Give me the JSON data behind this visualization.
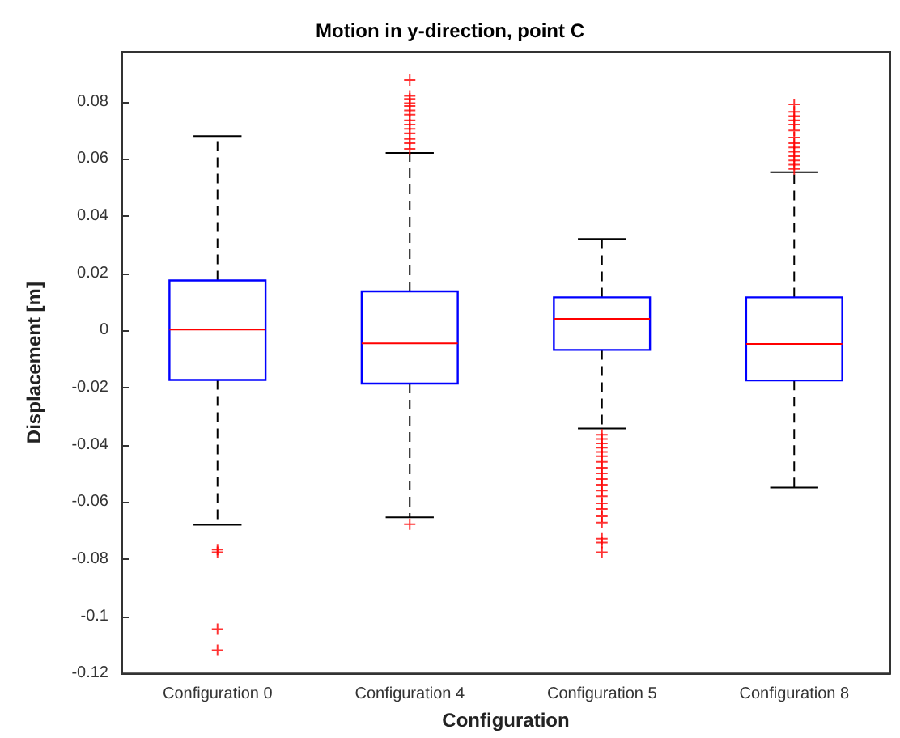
{
  "chart_data": {
    "type": "box",
    "title": "Motion in y-direction, point C",
    "xlabel": "Configuration",
    "ylabel": "Displacement [m]",
    "categories": [
      "Configuration 0",
      "Configuration 4",
      "Configuration 5",
      "Configuration 8"
    ],
    "ylim": [
      -0.12,
      0.0975
    ],
    "yticks": [
      -0.12,
      -0.1,
      -0.08,
      -0.06,
      -0.04,
      -0.02,
      0,
      0.02,
      0.04,
      0.06,
      0.08
    ],
    "grid": false,
    "marker": "cross",
    "line_style": "dashed",
    "series": [
      {
        "color": "#0000ff",
        "boxes": [
          {
            "low": -0.068,
            "q1": -0.0173,
            "median": 0.0003,
            "q3": 0.0175,
            "high": 0.068,
            "outliers": [
              -0.0767,
              -0.0776,
              -0.1045,
              -0.1119
            ]
          },
          {
            "low": -0.0654,
            "q1": -0.0186,
            "median": -0.0045,
            "q3": 0.0137,
            "high": 0.0621,
            "outliers": [
              -0.0678,
              0.0876,
              0.0821,
              0.081,
              0.0795,
              0.0785,
              0.077,
              0.0755,
              0.0735,
              0.072,
              0.0705,
              0.069,
              0.067,
              0.0655,
              0.0635
            ]
          },
          {
            "low": -0.0343,
            "q1": -0.0068,
            "median": 0.0041,
            "q3": 0.0116,
            "high": 0.032,
            "outliers": [
              -0.0365,
              -0.038,
              -0.0395,
              -0.041,
              -0.0425,
              -0.044,
              -0.046,
              -0.048,
              -0.05,
              -0.052,
              -0.054,
              -0.056,
              -0.058,
              -0.0605,
              -0.0625,
              -0.065,
              -0.0672,
              -0.0729,
              -0.0742,
              -0.0776
            ]
          },
          {
            "low": -0.055,
            "q1": -0.0175,
            "median": -0.0047,
            "q3": 0.0116,
            "high": 0.0554,
            "outliers": [
              0.0791,
              0.0765,
              0.075,
              0.0735,
              0.072,
              0.07,
              0.0675,
              0.0655,
              0.064,
              0.0625,
              0.061,
              0.0595,
              0.058,
              0.0565
            ]
          }
        ]
      }
    ]
  }
}
